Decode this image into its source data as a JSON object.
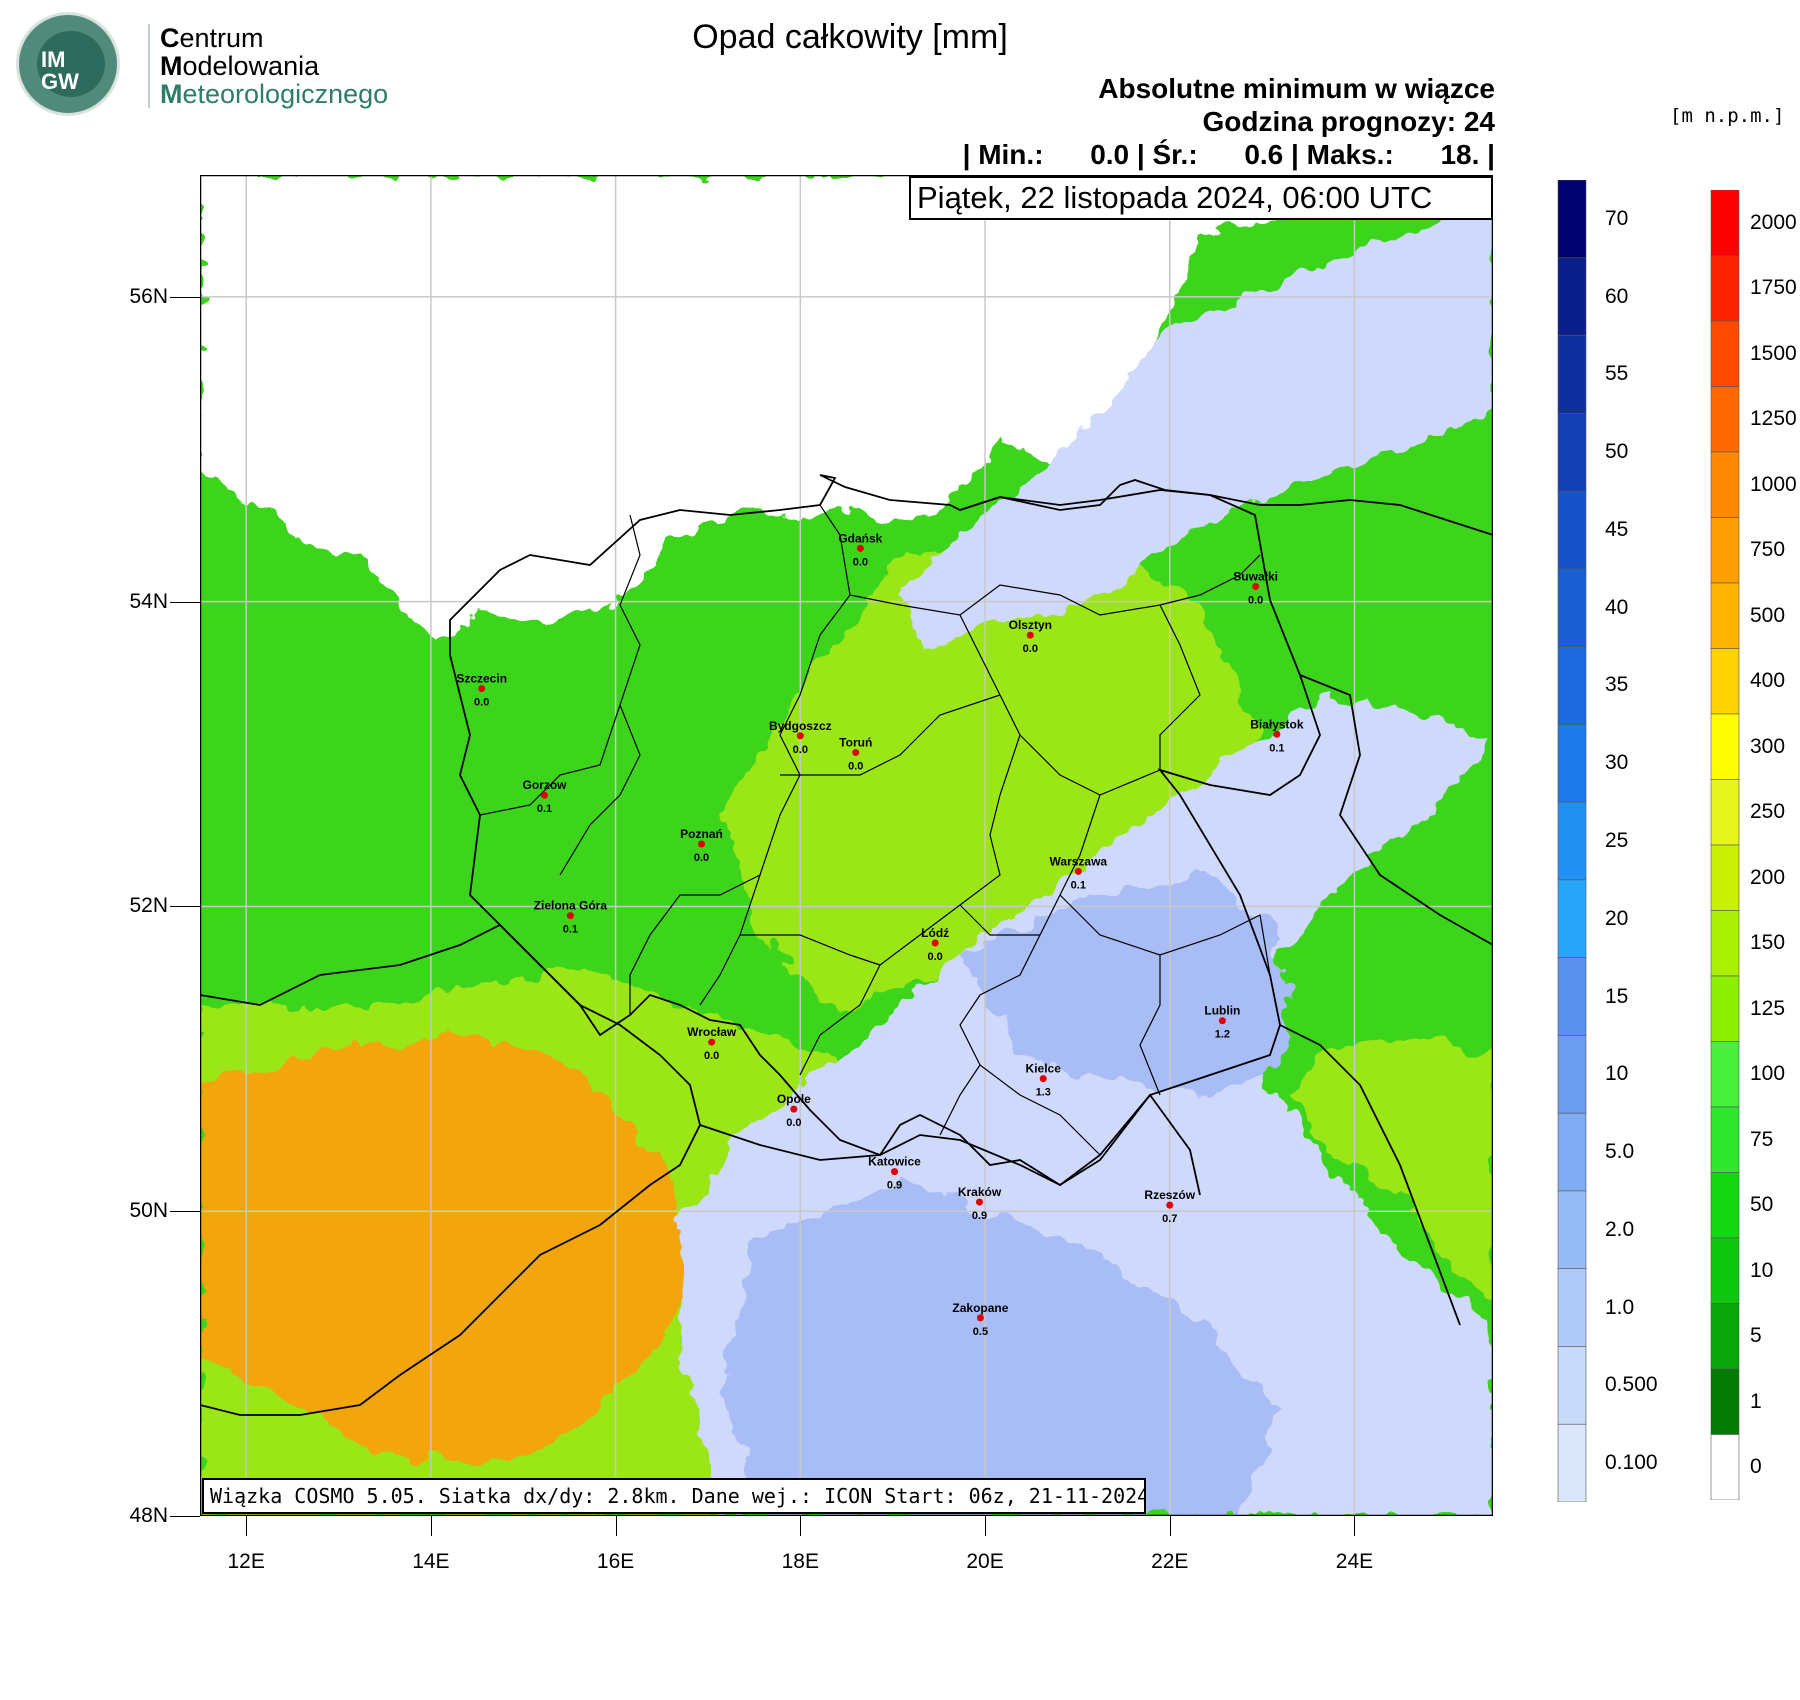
{
  "logo": {
    "letters_top": "IM",
    "letters_bottom": "GW",
    "line1_initial": "C",
    "line1_rest": "entrum",
    "line2_initial": "M",
    "line2_rest": "odelowania",
    "line3_initial": "M",
    "line3_rest": "eteorologicznego"
  },
  "header": {
    "title": "Opad całkowity [mm]",
    "subtitle1": "Absolutne minimum w wiązce",
    "subtitle2": "Godzina prognozy: 24",
    "stats": "| Min.:      0.0 | Śr.:      0.6 | Maks.:      18. |",
    "date": "Piątek, 22 listopada 2024, 06:00 UTC",
    "unit_label": "[m n.p.m.]"
  },
  "footer": {
    "text": "Wiązka COSMO 5.05. Siatka dx/dy: 2.8km. Dane wej.: ICON Start: 06z, 21-11-2024"
  },
  "map": {
    "lat_labels": [
      "56N",
      "54N",
      "52N",
      "50N",
      "48N"
    ],
    "lon_labels": [
      "12E",
      "14E",
      "16E",
      "18E",
      "20E",
      "22E",
      "24E"
    ],
    "lat_range": [
      48,
      56.8
    ],
    "lon_range": [
      11.5,
      25.5
    ],
    "colors": {
      "sea": "#ffffff",
      "lowland": "#3dd41c",
      "upland": "#9be614",
      "mountain": "#f2a50f",
      "precip_light": "#cfd9fb",
      "precip_mid": "#a8bdf6"
    },
    "cities": [
      {
        "name": "Gdańsk",
        "lon": 18.65,
        "lat": 54.35,
        "value": "0.0"
      },
      {
        "name": "Suwałki",
        "lon": 22.93,
        "lat": 54.1,
        "value": "0.0"
      },
      {
        "name": "Olsztyn",
        "lon": 20.49,
        "lat": 53.78,
        "value": "0.0"
      },
      {
        "name": "Szczecin",
        "lon": 14.55,
        "lat": 53.43,
        "value": "0.0"
      },
      {
        "name": "Bydgoszcz",
        "lon": 18.0,
        "lat": 53.12,
        "value": "0.0"
      },
      {
        "name": "Toruń",
        "lon": 18.6,
        "lat": 53.01,
        "value": "0.0"
      },
      {
        "name": "Białystok",
        "lon": 23.16,
        "lat": 53.13,
        "value": "0.1"
      },
      {
        "name": "Gorzów",
        "lon": 15.23,
        "lat": 52.73,
        "value": "0.1"
      },
      {
        "name": "Poznań",
        "lon": 16.93,
        "lat": 52.41,
        "value": "0.0"
      },
      {
        "name": "Warszawa",
        "lon": 21.01,
        "lat": 52.23,
        "value": "0.1"
      },
      {
        "name": "Zielona Góra",
        "lon": 15.51,
        "lat": 51.94,
        "value": "0.1"
      },
      {
        "name": "Łódź",
        "lon": 19.46,
        "lat": 51.76,
        "value": "0.0"
      },
      {
        "name": "Lublin",
        "lon": 22.57,
        "lat": 51.25,
        "value": "1.2"
      },
      {
        "name": "Wrocław",
        "lon": 17.04,
        "lat": 51.11,
        "value": "0.0"
      },
      {
        "name": "Kielce",
        "lon": 20.63,
        "lat": 50.87,
        "value": "1.3"
      },
      {
        "name": "Opole",
        "lon": 17.93,
        "lat": 50.67,
        "value": "0.0"
      },
      {
        "name": "Katowice",
        "lon": 19.02,
        "lat": 50.26,
        "value": "0.9"
      },
      {
        "name": "Kraków",
        "lon": 19.94,
        "lat": 50.06,
        "value": "0.9"
      },
      {
        "name": "Rzeszów",
        "lon": 22.0,
        "lat": 50.04,
        "value": "0.7"
      },
      {
        "name": "Zakopane",
        "lon": 19.95,
        "lat": 49.3,
        "value": "0.5"
      }
    ],
    "city_color": "#e00000"
  },
  "precip_scale": {
    "labels": [
      "70",
      "60",
      "55",
      "50",
      "45",
      "40",
      "35",
      "30",
      "25",
      "20",
      "15",
      "10",
      "5.0",
      "2.0",
      "1.0",
      "0.500",
      "0.100"
    ],
    "colors": [
      "#00006e",
      "#0a1e8c",
      "#0f2ea0",
      "#1340b4",
      "#1652c8",
      "#195ed2",
      "#1c6ade",
      "#1e7ae8",
      "#2290f0",
      "#28a4f8",
      "#5a90ee",
      "#6d9ef0",
      "#80acf3",
      "#97bcf5",
      "#b0cbf8",
      "#c8daf9",
      "#dbe6fb"
    ]
  },
  "height_scale": {
    "labels": [
      "2000",
      "1750",
      "1500",
      "1250",
      "1000",
      "750",
      "500",
      "400",
      "300",
      "250",
      "200",
      "150",
      "125",
      "100",
      "75",
      "50",
      "10",
      "5",
      "1",
      "0"
    ],
    "colors": [
      "#ff0000",
      "#ff2400",
      "#ff4a00",
      "#ff6a00",
      "#ff8a00",
      "#ffa000",
      "#ffb400",
      "#ffd200",
      "#ffff00",
      "#e6f51e",
      "#c8f000",
      "#aaf000",
      "#8cf000",
      "#46f03c",
      "#2de82d",
      "#14d714",
      "#0ec80e",
      "#0aa50a",
      "#057a05",
      "#ffffff"
    ]
  }
}
